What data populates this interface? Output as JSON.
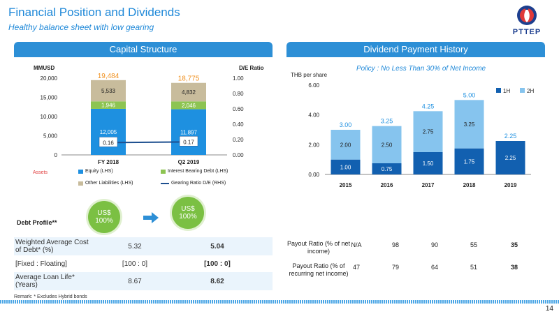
{
  "header": {
    "title": "Financial Position and Dividends",
    "subtitle": "Healthy balance sheet with low gearing",
    "logo_text": "PTTEP"
  },
  "capital": {
    "panel_title": "Capital Structure",
    "assets_label": "Assets",
    "legend": [
      "Equity (LHS)",
      "Interest Bearing Debt (LHS)",
      "Other Liabilities (LHS)",
      "Gearing Ratio D/E (RHS)"
    ]
  },
  "dividend": {
    "panel_title": "Dividend Payment History",
    "policy": "Policy : No Less Than 30% of Net Income",
    "legend": [
      "1H",
      "2H"
    ]
  },
  "debt": {
    "profile_label": "Debt Profile**",
    "pill_fy": "US$ 100%",
    "pill_q2": "US$ 100%",
    "rows": [
      {
        "label": "Weighted Average Cost of Debt* (%)",
        "fy": "5.32",
        "q2": "5.04"
      },
      {
        "label": "[Fixed : Floating]",
        "fy": "[100 : 0]",
        "q2": "[100 : 0]"
      },
      {
        "label": "Average Loan Life* (Years)",
        "fy": "8.67",
        "q2": "8.62"
      }
    ],
    "remark": "Remark:   *   Excludes Hybrid bonds"
  },
  "payout": {
    "rows": [
      {
        "label": "Payout Ratio (% of net income)",
        "values": [
          "N/A",
          "98",
          "90",
          "55",
          "35"
        ]
      },
      {
        "label": "Payout Ratio (% of recurring net income)",
        "values": [
          "47",
          "79",
          "64",
          "51",
          "38"
        ]
      }
    ]
  },
  "page_number": "14",
  "colors": {
    "title_blue": "#1E88D8",
    "panel_blue": "#2D8FD6",
    "equity": "#1E90E0",
    "debt": "#8DC452",
    "other": "#C8BC9C",
    "gearing_line": "#1D4F8F",
    "total_label": "#F0901E",
    "div_1h": "#1260B0",
    "div_2h": "#86C4EE",
    "div_total": "#1E90E0",
    "pill": "#7BC043",
    "arrow": "#2D8FD6"
  },
  "chart_data": [
    {
      "type": "bar",
      "stacked": true,
      "categories": [
        "FY 2018",
        "Q2 2019"
      ],
      "ylabel": "MMUSD",
      "y2label": "D/E Ratio",
      "ylim": [
        0,
        20000
      ],
      "y2lim": [
        0,
        1.0
      ],
      "yticks": [
        "0",
        "5,000",
        "10,000",
        "15,000",
        "20,000"
      ],
      "y2ticks": [
        "0.00",
        "0.20",
        "0.40",
        "0.60",
        "0.80",
        "1.00"
      ],
      "series": [
        {
          "name": "Equity (LHS)",
          "values": [
            12005,
            11897
          ],
          "labels": [
            "12,005",
            "11,897"
          ]
        },
        {
          "name": "Interest Bearing Debt (LHS)",
          "values": [
            1946,
            2046
          ],
          "labels": [
            "1,946",
            "2,046"
          ]
        },
        {
          "name": "Other Liabilities (LHS)",
          "values": [
            5533,
            4832
          ],
          "labels": [
            "5,533",
            "4,832"
          ]
        }
      ],
      "totals": [
        "19,484",
        "18,775"
      ],
      "line": {
        "name": "Gearing Ratio D/E (RHS)",
        "values": [
          0.16,
          0.17
        ],
        "labels": [
          "0.16",
          "0.17"
        ]
      },
      "legend_position": "bottom"
    },
    {
      "type": "bar",
      "stacked": true,
      "categories": [
        "2015",
        "2016",
        "2017",
        "2018",
        "2019"
      ],
      "ylabel": "THB per share",
      "ylim": [
        0,
        6
      ],
      "yticks": [
        "0.00",
        "2.00",
        "4.00",
        "6.00"
      ],
      "series": [
        {
          "name": "1H",
          "values": [
            1.0,
            0.75,
            1.5,
            1.75,
            2.25
          ],
          "labels": [
            "1.00",
            "0.75",
            "1.50",
            "1.75",
            "2.25"
          ]
        },
        {
          "name": "2H",
          "values": [
            2.0,
            2.5,
            2.75,
            3.25,
            0
          ],
          "labels": [
            "2.00",
            "2.50",
            "2.75",
            "3.25",
            ""
          ]
        }
      ],
      "totals": [
        "3.00",
        "3.25",
        "4.25",
        "5.00",
        "2.25"
      ],
      "legend_position": "top-right"
    }
  ]
}
